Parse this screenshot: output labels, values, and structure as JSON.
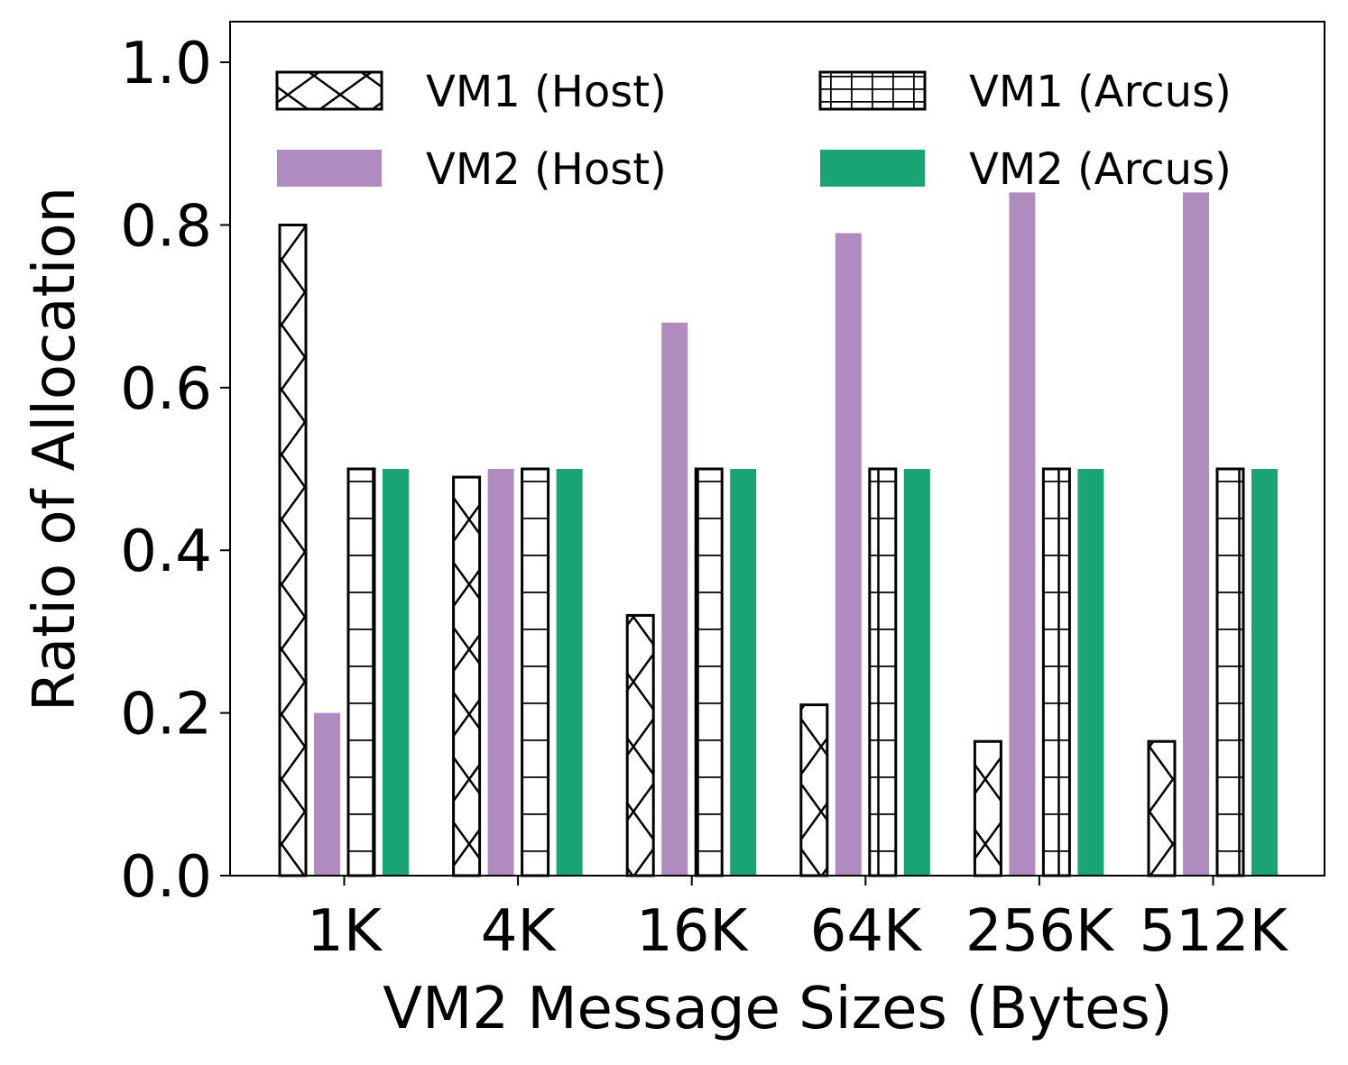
{
  "chart_data": {
    "type": "bar",
    "title": "",
    "xlabel": "VM2 Message Sizes (Bytes)",
    "ylabel": "Ratio of Allocation",
    "categories": [
      "1K",
      "4K",
      "16K",
      "64K",
      "256K",
      "512K"
    ],
    "ylim": [
      0,
      1.05
    ],
    "yticks": [
      "0.0",
      "0.2",
      "0.4",
      "0.6",
      "0.8",
      "1.0"
    ],
    "ytick_values": [
      0.0,
      0.2,
      0.4,
      0.6,
      0.8,
      1.0
    ],
    "grid": false,
    "legend_position": "top",
    "series": [
      {
        "name": "VM1 (Host)",
        "pattern": "cross-hatch",
        "color": "#ffffff",
        "values": [
          0.8,
          0.49,
          0.32,
          0.21,
          0.165,
          0.165
        ]
      },
      {
        "name": "VM2 (Host)",
        "pattern": "solid",
        "color": "#af8bc0",
        "values": [
          0.2,
          0.5,
          0.68,
          0.79,
          0.84,
          0.84
        ]
      },
      {
        "name": "VM1 (Arcus)",
        "pattern": "grid-hatch",
        "color": "#ffffff",
        "values": [
          0.5,
          0.5,
          0.5,
          0.5,
          0.5,
          0.5
        ]
      },
      {
        "name": "VM2 (Arcus)",
        "pattern": "solid",
        "color": "#1aa373",
        "values": [
          0.5,
          0.5,
          0.5,
          0.5,
          0.5,
          0.5
        ]
      }
    ]
  }
}
